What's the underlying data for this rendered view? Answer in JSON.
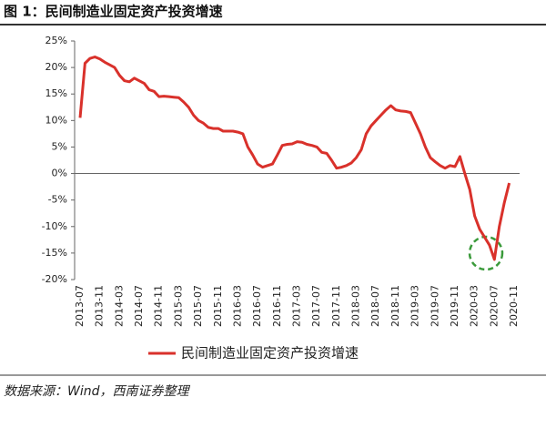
{
  "chart_data": {
    "type": "line",
    "title": "图 1：民间制造业固定资产投资增速",
    "source": "数据来源：Wind，西南证券整理",
    "categories": [
      "2013-07",
      null,
      null,
      null,
      "2013-11",
      null,
      null,
      null,
      "2014-03",
      null,
      null,
      null,
      "2014-07",
      null,
      null,
      null,
      "2014-11",
      null,
      null,
      null,
      "2015-03",
      null,
      null,
      null,
      "2015-07",
      null,
      null,
      null,
      "2015-11",
      null,
      null,
      null,
      "2016-03",
      null,
      null,
      null,
      "2016-07",
      null,
      null,
      null,
      "2016-11",
      null,
      null,
      null,
      "2017-03",
      null,
      null,
      null,
      "2017-07",
      null,
      null,
      null,
      "2017-11",
      null,
      null,
      null,
      "2018-03",
      null,
      null,
      null,
      "2018-07",
      null,
      null,
      null,
      "2018-11",
      null,
      null,
      null,
      "2019-03",
      null,
      null,
      null,
      "2019-07",
      null,
      null,
      null,
      "2019-11",
      null,
      null,
      null,
      "2020-03",
      null,
      null,
      null,
      "2020-07",
      null,
      null,
      null,
      "2020-11"
    ],
    "series": [
      {
        "name": "民间制造业固定资产投资增速",
        "color": "#d9312b",
        "values": [
          10.5,
          20.8,
          21.7,
          22.0,
          21.6,
          21.0,
          20.5,
          20.0,
          18.5,
          17.5,
          17.3,
          18.0,
          17.5,
          17.0,
          15.8,
          15.5,
          14.5,
          14.6,
          14.5,
          14.4,
          14.3,
          13.5,
          12.5,
          11.0,
          10.0,
          9.5,
          8.7,
          8.5,
          8.5,
          8.0,
          8.0,
          8.0,
          7.8,
          7.5,
          5.0,
          3.5,
          1.8,
          1.2,
          1.5,
          1.8,
          3.5,
          5.3,
          5.5,
          5.6,
          6.0,
          5.9,
          5.5,
          5.3,
          5.0,
          4.0,
          3.8,
          2.5,
          1.0,
          1.2,
          1.5,
          2.0,
          3.0,
          4.5,
          7.5,
          9.0,
          10.0,
          11.0,
          12.0,
          12.8,
          12.0,
          11.8,
          11.7,
          11.5,
          9.5,
          7.5,
          5.0,
          3.0,
          2.2,
          1.5,
          1.0,
          1.5,
          1.3,
          3.2,
          0.0,
          -3.0,
          -8.0,
          -10.5,
          -12.0,
          -13.5,
          -16.2,
          -10.0,
          -5.5,
          -1.8,
          null
        ]
      }
    ],
    "ylim": [
      -20,
      25
    ],
    "yticks": [
      {
        "value": -20,
        "label": "-20%"
      },
      {
        "value": -15,
        "label": "-15%"
      },
      {
        "value": -10,
        "label": "-10%"
      },
      {
        "value": -5,
        "label": "-5%"
      },
      {
        "value": 0,
        "label": "0%"
      },
      {
        "value": 5,
        "label": "5%"
      },
      {
        "value": 10,
        "label": "10%"
      },
      {
        "value": 15,
        "label": "15%"
      },
      {
        "value": 20,
        "label": "20%"
      },
      {
        "value": 25,
        "label": "25%"
      }
    ],
    "legend": "bottom"
  }
}
